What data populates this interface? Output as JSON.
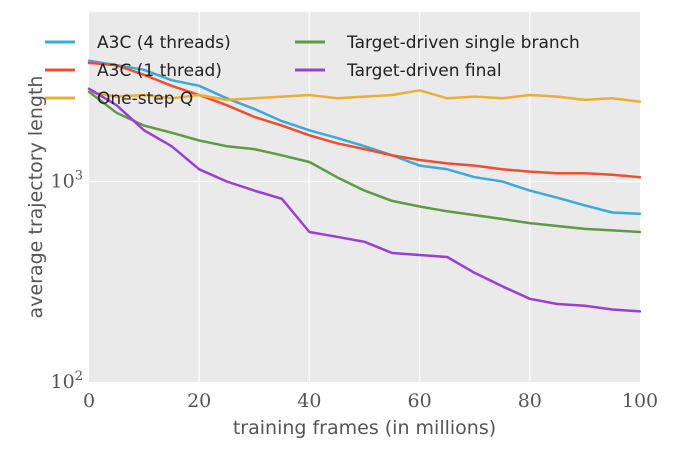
{
  "chart_data": {
    "type": "line",
    "xlabel": "training frames (in millions)",
    "ylabel": "average trajectory length",
    "xlim": [
      0,
      100
    ],
    "ylim": [
      100,
      7000
    ],
    "y_scale": "log",
    "grid": true,
    "background": "#eaeaea",
    "x_ticks": [
      "0",
      "20",
      "40",
      "60",
      "80",
      "100"
    ],
    "y_ticks": [
      {
        "value": 100,
        "base": "10",
        "exp": "2"
      },
      {
        "value": 1000,
        "base": "10",
        "exp": "3"
      }
    ],
    "legend_position": "top",
    "series": [
      {
        "name": "A3C (4 threads)",
        "color": "#3da8de",
        "x": [
          0,
          5,
          10,
          15,
          20,
          25,
          30,
          35,
          40,
          45,
          50,
          55,
          60,
          65,
          70,
          75,
          80,
          85,
          90,
          95,
          100
        ],
        "y": [
          4000,
          3800,
          3600,
          3200,
          3000,
          2600,
          2300,
          2000,
          1800,
          1650,
          1500,
          1350,
          1200,
          1150,
          1050,
          1000,
          900,
          830,
          760,
          700,
          690
        ]
      },
      {
        "name": "A3C (1 thread)",
        "color": "#ef4f2e",
        "x": [
          0,
          5,
          10,
          15,
          20,
          25,
          30,
          35,
          40,
          45,
          50,
          55,
          60,
          65,
          70,
          75,
          80,
          85,
          90,
          95,
          100
        ],
        "y": [
          3900,
          3800,
          3400,
          3000,
          2700,
          2400,
          2100,
          1900,
          1700,
          1550,
          1450,
          1350,
          1280,
          1230,
          1200,
          1150,
          1120,
          1100,
          1100,
          1080,
          1050
        ]
      },
      {
        "name": "One-step Q",
        "color": "#e8b038",
        "x": [
          0,
          5,
          10,
          15,
          20,
          25,
          30,
          35,
          40,
          45,
          50,
          55,
          60,
          65,
          70,
          75,
          80,
          85,
          90,
          95,
          100
        ],
        "y": [
          2800,
          2650,
          2700,
          2600,
          2700,
          2550,
          2600,
          2650,
          2700,
          2600,
          2650,
          2700,
          2850,
          2600,
          2650,
          2600,
          2700,
          2650,
          2550,
          2600,
          2500
        ]
      },
      {
        "name": "Target-driven single branch",
        "color": "#5f9a45",
        "x": [
          0,
          5,
          10,
          15,
          20,
          25,
          30,
          35,
          40,
          45,
          50,
          55,
          60,
          65,
          70,
          75,
          80,
          85,
          90,
          95,
          100
        ],
        "y": [
          2800,
          2200,
          1900,
          1750,
          1600,
          1500,
          1450,
          1350,
          1250,
          1050,
          900,
          800,
          750,
          710,
          680,
          650,
          620,
          600,
          580,
          570,
          560
        ]
      },
      {
        "name": "Target-driven final",
        "color": "#9a3ed4",
        "x": [
          0,
          5,
          10,
          15,
          20,
          25,
          30,
          35,
          40,
          45,
          50,
          55,
          60,
          65,
          70,
          75,
          80,
          85,
          90,
          95,
          100
        ],
        "y": [
          2900,
          2400,
          1800,
          1500,
          1150,
          1000,
          900,
          820,
          560,
          530,
          500,
          440,
          430,
          420,
          350,
          300,
          260,
          245,
          240,
          230,
          225
        ]
      }
    ]
  }
}
